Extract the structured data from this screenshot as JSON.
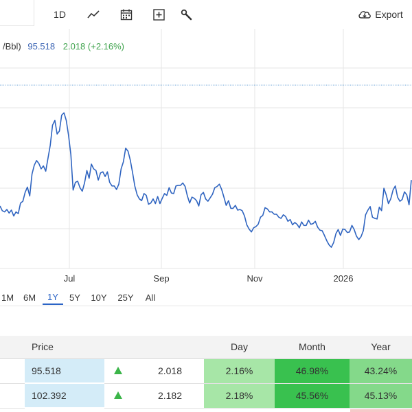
{
  "toolbar": {
    "interval_label": "1D",
    "export_label": "Export",
    "icons": [
      "line-chart-icon",
      "calendar-icon",
      "add-box-icon",
      "wrench-icon",
      "cloud-download-icon"
    ]
  },
  "legend": {
    "series_fragment": "/Bbl)",
    "price": "95.518",
    "change": "2.018 (+2.16%)"
  },
  "colors": {
    "line": "#2f64c0",
    "price_text": "#3b64b4",
    "change_text": "#3fa34d",
    "reference_line": "#6aa3d8",
    "grid": "#e6e6e6",
    "active_range": "#2b64c6"
  },
  "chart_data": {
    "type": "line",
    "title": "",
    "xlabel": "",
    "ylabel": "",
    "x_tick_labels": [
      "Jul",
      "Sep",
      "Nov",
      "2026"
    ],
    "reference_value": 95.518,
    "note_values_relative_to_y_axis_units_not_printed": false,
    "series": [
      {
        "values": [
          78.6,
          77.8,
          77.6,
          78.0,
          77.4,
          77.9,
          76.9,
          77.6,
          77.3,
          79.1,
          79.4,
          80.9,
          81.8,
          80.3,
          84.0,
          85.5,
          86.3,
          85.8,
          84.9,
          85.4,
          84.5,
          86.7,
          88.9,
          92.3,
          93.1,
          90.8,
          91.3,
          94.0,
          94.4,
          93.1,
          90.6,
          87.3,
          81.3,
          82.6,
          82.8,
          81.7,
          81.1,
          82.5,
          84.6,
          83.3,
          85.7,
          84.9,
          84.6,
          83.0,
          84.2,
          84.4,
          83.6,
          84.4,
          82.6,
          82.0,
          82.0,
          81.4,
          82.3,
          84.9,
          86.1,
          88.4,
          87.9,
          86.4,
          84.3,
          82.0,
          80.5,
          79.8,
          79.5,
          80.7,
          80.4,
          78.9,
          79.1,
          79.8,
          79.0,
          80.2,
          79.0,
          79.9,
          80.7,
          80.4,
          81.7,
          80.8,
          80.7,
          82.0,
          82.1,
          82.1,
          82.5,
          81.9,
          80.3,
          79.1,
          80.1,
          79.9,
          79.5,
          78.6,
          80.5,
          80.9,
          79.8,
          79.4,
          80.0,
          80.6,
          81.7,
          81.9,
          82.3,
          81.4,
          80.1,
          78.7,
          79.5,
          78.2,
          78.2,
          78.7,
          77.9,
          78.0,
          77.8,
          76.9,
          75.4,
          74.7,
          74.2,
          74.9,
          75.1,
          75.5,
          76.7,
          77.0,
          78.3,
          78.1,
          77.6,
          77.6,
          77.2,
          77.2,
          76.7,
          76.5,
          77.1,
          76.8,
          76.0,
          76.3,
          75.4,
          75.8,
          75.5,
          74.9,
          75.9,
          75.3,
          75.3,
          76.2,
          75.5,
          75.6,
          76.0,
          75.0,
          74.5,
          74.4,
          73.6,
          72.7,
          72.0,
          71.6,
          72.4,
          73.9,
          74.6,
          73.6,
          74.7,
          74.6,
          74.1,
          74.2,
          75.3,
          74.6,
          73.5,
          72.9,
          73.4,
          74.4,
          77.1,
          77.9,
          78.5,
          76.7,
          76.5,
          76.4,
          78.4,
          77.8,
          81.6,
          80.5,
          79.0,
          79.8,
          81.3,
          82.0,
          80.1,
          79.4,
          79.7,
          81.0,
          80.5,
          78.8,
          83.0
        ],
        "color": "#2f64c0"
      }
    ],
    "grid": true
  },
  "ranges": {
    "items": [
      "1M",
      "6M",
      "1Y",
      "5Y",
      "10Y",
      "25Y",
      "All"
    ],
    "active": "1Y"
  },
  "table": {
    "headers": {
      "price": "Price",
      "day": "Day",
      "month": "Month",
      "year": "Year"
    },
    "rows": [
      {
        "price": "95.518",
        "change": "2.018",
        "day": "2.16%",
        "month": "46.98%",
        "year": "43.24%"
      },
      {
        "price": "102.392",
        "change": "2.182",
        "day": "2.18%",
        "month": "45.56%",
        "year": "45.13%"
      }
    ]
  }
}
